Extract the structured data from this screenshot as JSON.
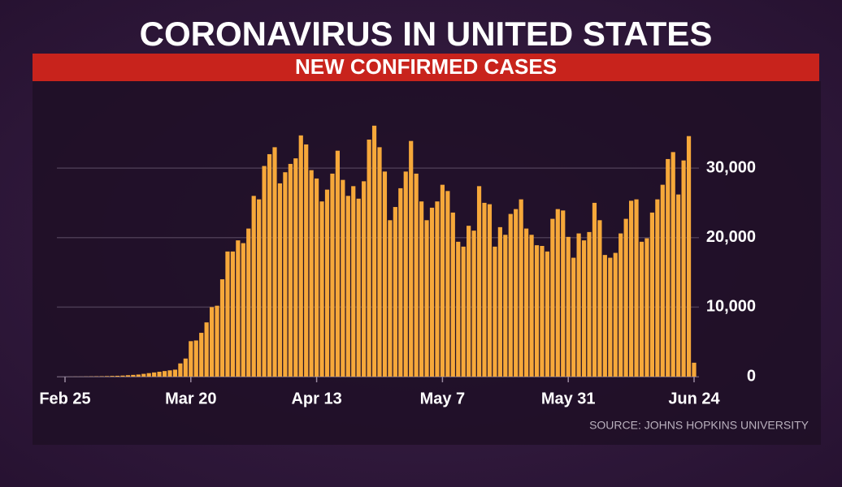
{
  "chart_data": {
    "type": "bar",
    "title": "CORONAVIRUS IN UNITED STATES",
    "subtitle": "NEW CONFIRMED CASES",
    "source": "SOURCE: JOHNS HOPKINS UNIVERSITY",
    "color": "#f6a83a",
    "categories": [
      "Feb 25",
      null,
      null,
      null,
      null,
      null,
      null,
      null,
      null,
      null,
      null,
      null,
      null,
      null,
      null,
      null,
      null,
      null,
      null,
      null,
      null,
      null,
      null,
      null,
      "Mar 20",
      null,
      null,
      null,
      null,
      null,
      null,
      null,
      null,
      null,
      null,
      null,
      null,
      null,
      null,
      null,
      null,
      null,
      null,
      null,
      null,
      null,
      null,
      null,
      "Apr 13",
      null,
      null,
      null,
      null,
      null,
      null,
      null,
      null,
      null,
      null,
      null,
      null,
      null,
      null,
      null,
      null,
      null,
      null,
      null,
      null,
      null,
      null,
      null,
      "May 7",
      null,
      null,
      null,
      null,
      null,
      null,
      null,
      null,
      null,
      null,
      null,
      null,
      null,
      null,
      null,
      null,
      null,
      null,
      null,
      null,
      null,
      null,
      null,
      "May 31",
      null,
      null,
      null,
      null,
      null,
      null,
      null,
      null,
      null,
      null,
      null,
      null,
      null,
      null,
      null,
      null,
      null,
      null,
      null,
      null,
      null,
      null,
      null,
      "Jun 24"
    ],
    "values": [
      0,
      5,
      10,
      10,
      20,
      30,
      40,
      50,
      70,
      100,
      120,
      150,
      200,
      250,
      300,
      400,
      500,
      600,
      700,
      800,
      900,
      1000,
      1900,
      2600,
      5100,
      5200,
      6300,
      7800,
      10000,
      10200,
      14000,
      18000,
      18000,
      19600,
      19200,
      21300,
      26000,
      25500,
      30300,
      32000,
      33000,
      27800,
      29400,
      30600,
      31400,
      34700,
      33400,
      29700,
      28500,
      25200,
      26900,
      29200,
      32500,
      28300,
      26000,
      27400,
      25600,
      28100,
      34100,
      36100,
      33000,
      29500,
      22500,
      24400,
      27100,
      29500,
      33900,
      29200,
      25200,
      22500,
      24300,
      25200,
      27600,
      26700,
      23600,
      19400,
      18700,
      21700,
      21000,
      27400,
      25000,
      24800,
      18700,
      21500,
      20400,
      23400,
      24100,
      25500,
      21300,
      20400,
      18900,
      18800,
      18000,
      22700,
      24100,
      23900,
      20100,
      17100,
      20600,
      19600,
      20800,
      25000,
      22500,
      17500,
      17100,
      17800,
      20600,
      22700,
      25300,
      25500,
      19400,
      19900,
      23600,
      25500,
      27600,
      31300,
      32300,
      26200,
      31100,
      34600,
      2000
    ],
    "ylim": [
      0,
      39000
    ],
    "yticks": [
      0,
      {
        "value": 10000,
        "label": "10,000"
      },
      {
        "value": 20000,
        "label": "20,000"
      },
      {
        "value": 30000,
        "label": "30,000"
      }
    ],
    "grid": true
  }
}
